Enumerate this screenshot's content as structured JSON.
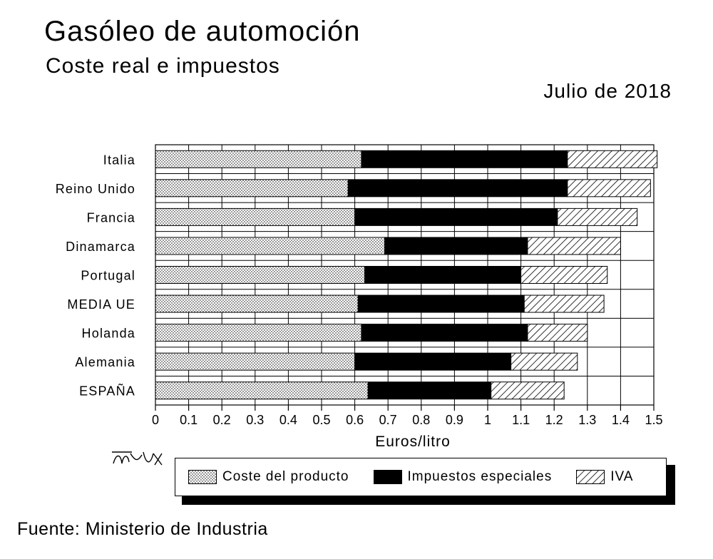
{
  "header": {
    "title": "Gasóleo de automoción",
    "subtitle": "Coste real e impuestos",
    "date": "Julio de 2018"
  },
  "footer": {
    "source": "Fuente: Ministerio de Industria"
  },
  "colors": {
    "coste": "#e6e6e6",
    "impuestos": "#000000",
    "iva": "#ffffff",
    "grid": "#000000"
  },
  "chart_data": {
    "type": "bar",
    "orientation": "horizontal",
    "stacked": true,
    "categories": [
      "Italia",
      "Reino Unido",
      "Francia",
      "Dinamarca",
      "Portugal",
      "MEDIA UE",
      "Holanda",
      "Alemania",
      "ESPAÑA"
    ],
    "series": [
      {
        "name": "Coste del producto",
        "values": [
          0.62,
          0.58,
          0.6,
          0.69,
          0.63,
          0.61,
          0.62,
          0.6,
          0.64
        ]
      },
      {
        "name": "Impuestos especiales",
        "values": [
          0.62,
          0.66,
          0.61,
          0.43,
          0.47,
          0.5,
          0.5,
          0.47,
          0.37
        ]
      },
      {
        "name": "IVA",
        "values": [
          0.27,
          0.25,
          0.24,
          0.28,
          0.26,
          0.24,
          0.18,
          0.2,
          0.22
        ]
      }
    ],
    "xlabel": "Euros/litro",
    "xlim": [
      0,
      1.5
    ],
    "xticks": [
      "0",
      "0.1",
      "0.2",
      "0.3",
      "0.4",
      "0.5",
      "0.6",
      "0.7",
      "0.8",
      "0.9",
      "1",
      "1.1",
      "1.2",
      "1.3",
      "1.4",
      "1.5"
    ],
    "grid": true,
    "legend_position": "bottom"
  }
}
